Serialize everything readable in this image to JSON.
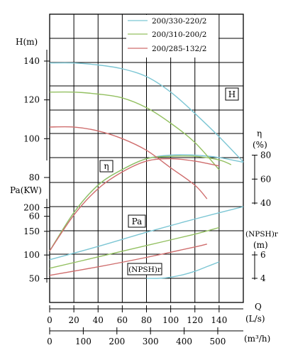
{
  "chart_data": {
    "type": "line",
    "legend": {
      "placement": "top-right",
      "entries": [
        {
          "name": "200/330-220/2",
          "color": "#7cc6d4"
        },
        {
          "name": "200/310-200/2",
          "color": "#93c061"
        },
        {
          "name": "200/285-132/2",
          "color": "#cf6d6d"
        }
      ]
    },
    "axes": {
      "H": {
        "label": "H(m)",
        "ticks": [
          "140",
          "120",
          "100",
          "80",
          "60"
        ],
        "range": [
          40,
          150
        ]
      },
      "Pa": {
        "label": "Pa(KW)",
        "ticks": [
          "200",
          "150",
          "100",
          "50"
        ],
        "range": [
          25,
          225
        ]
      },
      "eta": {
        "label_1": "η",
        "label_2": "(%)",
        "ticks": [
          "80",
          "60",
          "40"
        ],
        "range": [
          0,
          80
        ]
      },
      "npsh": {
        "label_1": "(NPSH)r",
        "label_2": "(m)",
        "ticks": [
          "6",
          "4"
        ],
        "range": [
          3,
          7
        ]
      },
      "Q_ls": {
        "label_1": "Q",
        "label_2": "(L/s)",
        "ticks": [
          "0",
          "20",
          "40",
          "60",
          "80",
          "100",
          "120",
          "140"
        ],
        "range": [
          0,
          160
        ]
      },
      "Q_m3h": {
        "label": "(m³/h)",
        "ticks": [
          "0",
          "100",
          "200",
          "300",
          "400",
          "500"
        ],
        "range": [
          0,
          576
        ]
      }
    },
    "curve_labels": {
      "H": "H",
      "eta": "η",
      "Pa": "Pa",
      "npsh": "(NPSH)r"
    },
    "grid": true,
    "series": [
      {
        "name": "200/330-220/2",
        "H": {
          "x": [
            0,
            20,
            40,
            60,
            80,
            100,
            120,
            140,
            160
          ],
          "y": [
            139,
            139,
            138,
            136,
            132,
            124,
            113,
            101,
            88
          ]
        },
        "eta": {
          "x": [
            0,
            20,
            40,
            60,
            80,
            100,
            120,
            140,
            160
          ],
          "y": [
            0,
            32,
            55,
            68,
            77,
            80,
            80,
            78,
            74
          ]
        },
        "Pa": {
          "x": [
            0,
            40,
            80,
            120,
            160
          ],
          "y": [
            90,
            118,
            148,
            176,
            202
          ]
        },
        "npsh": {
          "x": [
            80,
            90,
            100,
            110,
            120,
            130,
            140
          ],
          "y": [
            4.0,
            4.0,
            4.1,
            4.3,
            4.6,
            5.0,
            5.4
          ]
        }
      },
      {
        "name": "200/310-200/2",
        "H": {
          "x": [
            0,
            20,
            40,
            60,
            80,
            100,
            120,
            140
          ],
          "y": [
            124,
            124,
            123,
            121,
            116,
            108,
            98,
            84
          ]
        },
        "eta": {
          "x": [
            0,
            20,
            40,
            60,
            80,
            100,
            120,
            140,
            150
          ],
          "y": [
            0,
            32,
            55,
            68,
            77,
            79,
            79,
            76,
            72
          ]
        },
        "Pa": {
          "x": [
            0,
            40,
            80,
            120,
            140
          ],
          "y": [
            72,
            96,
            120,
            144,
            158
          ]
        }
      },
      {
        "name": "200/285-132/2",
        "H": {
          "x": [
            0,
            20,
            40,
            60,
            80,
            100,
            120,
            130
          ],
          "y": [
            106,
            106,
            104,
            100,
            94,
            85,
            76,
            69
          ]
        },
        "eta": {
          "x": [
            0,
            20,
            40,
            60,
            80,
            100,
            120,
            140
          ],
          "y": [
            0,
            30,
            52,
            66,
            75,
            77,
            75,
            71
          ]
        },
        "Pa": {
          "x": [
            0,
            40,
            80,
            120,
            130
          ],
          "y": [
            57,
            75,
            95,
            117,
            123
          ]
        }
      }
    ]
  }
}
